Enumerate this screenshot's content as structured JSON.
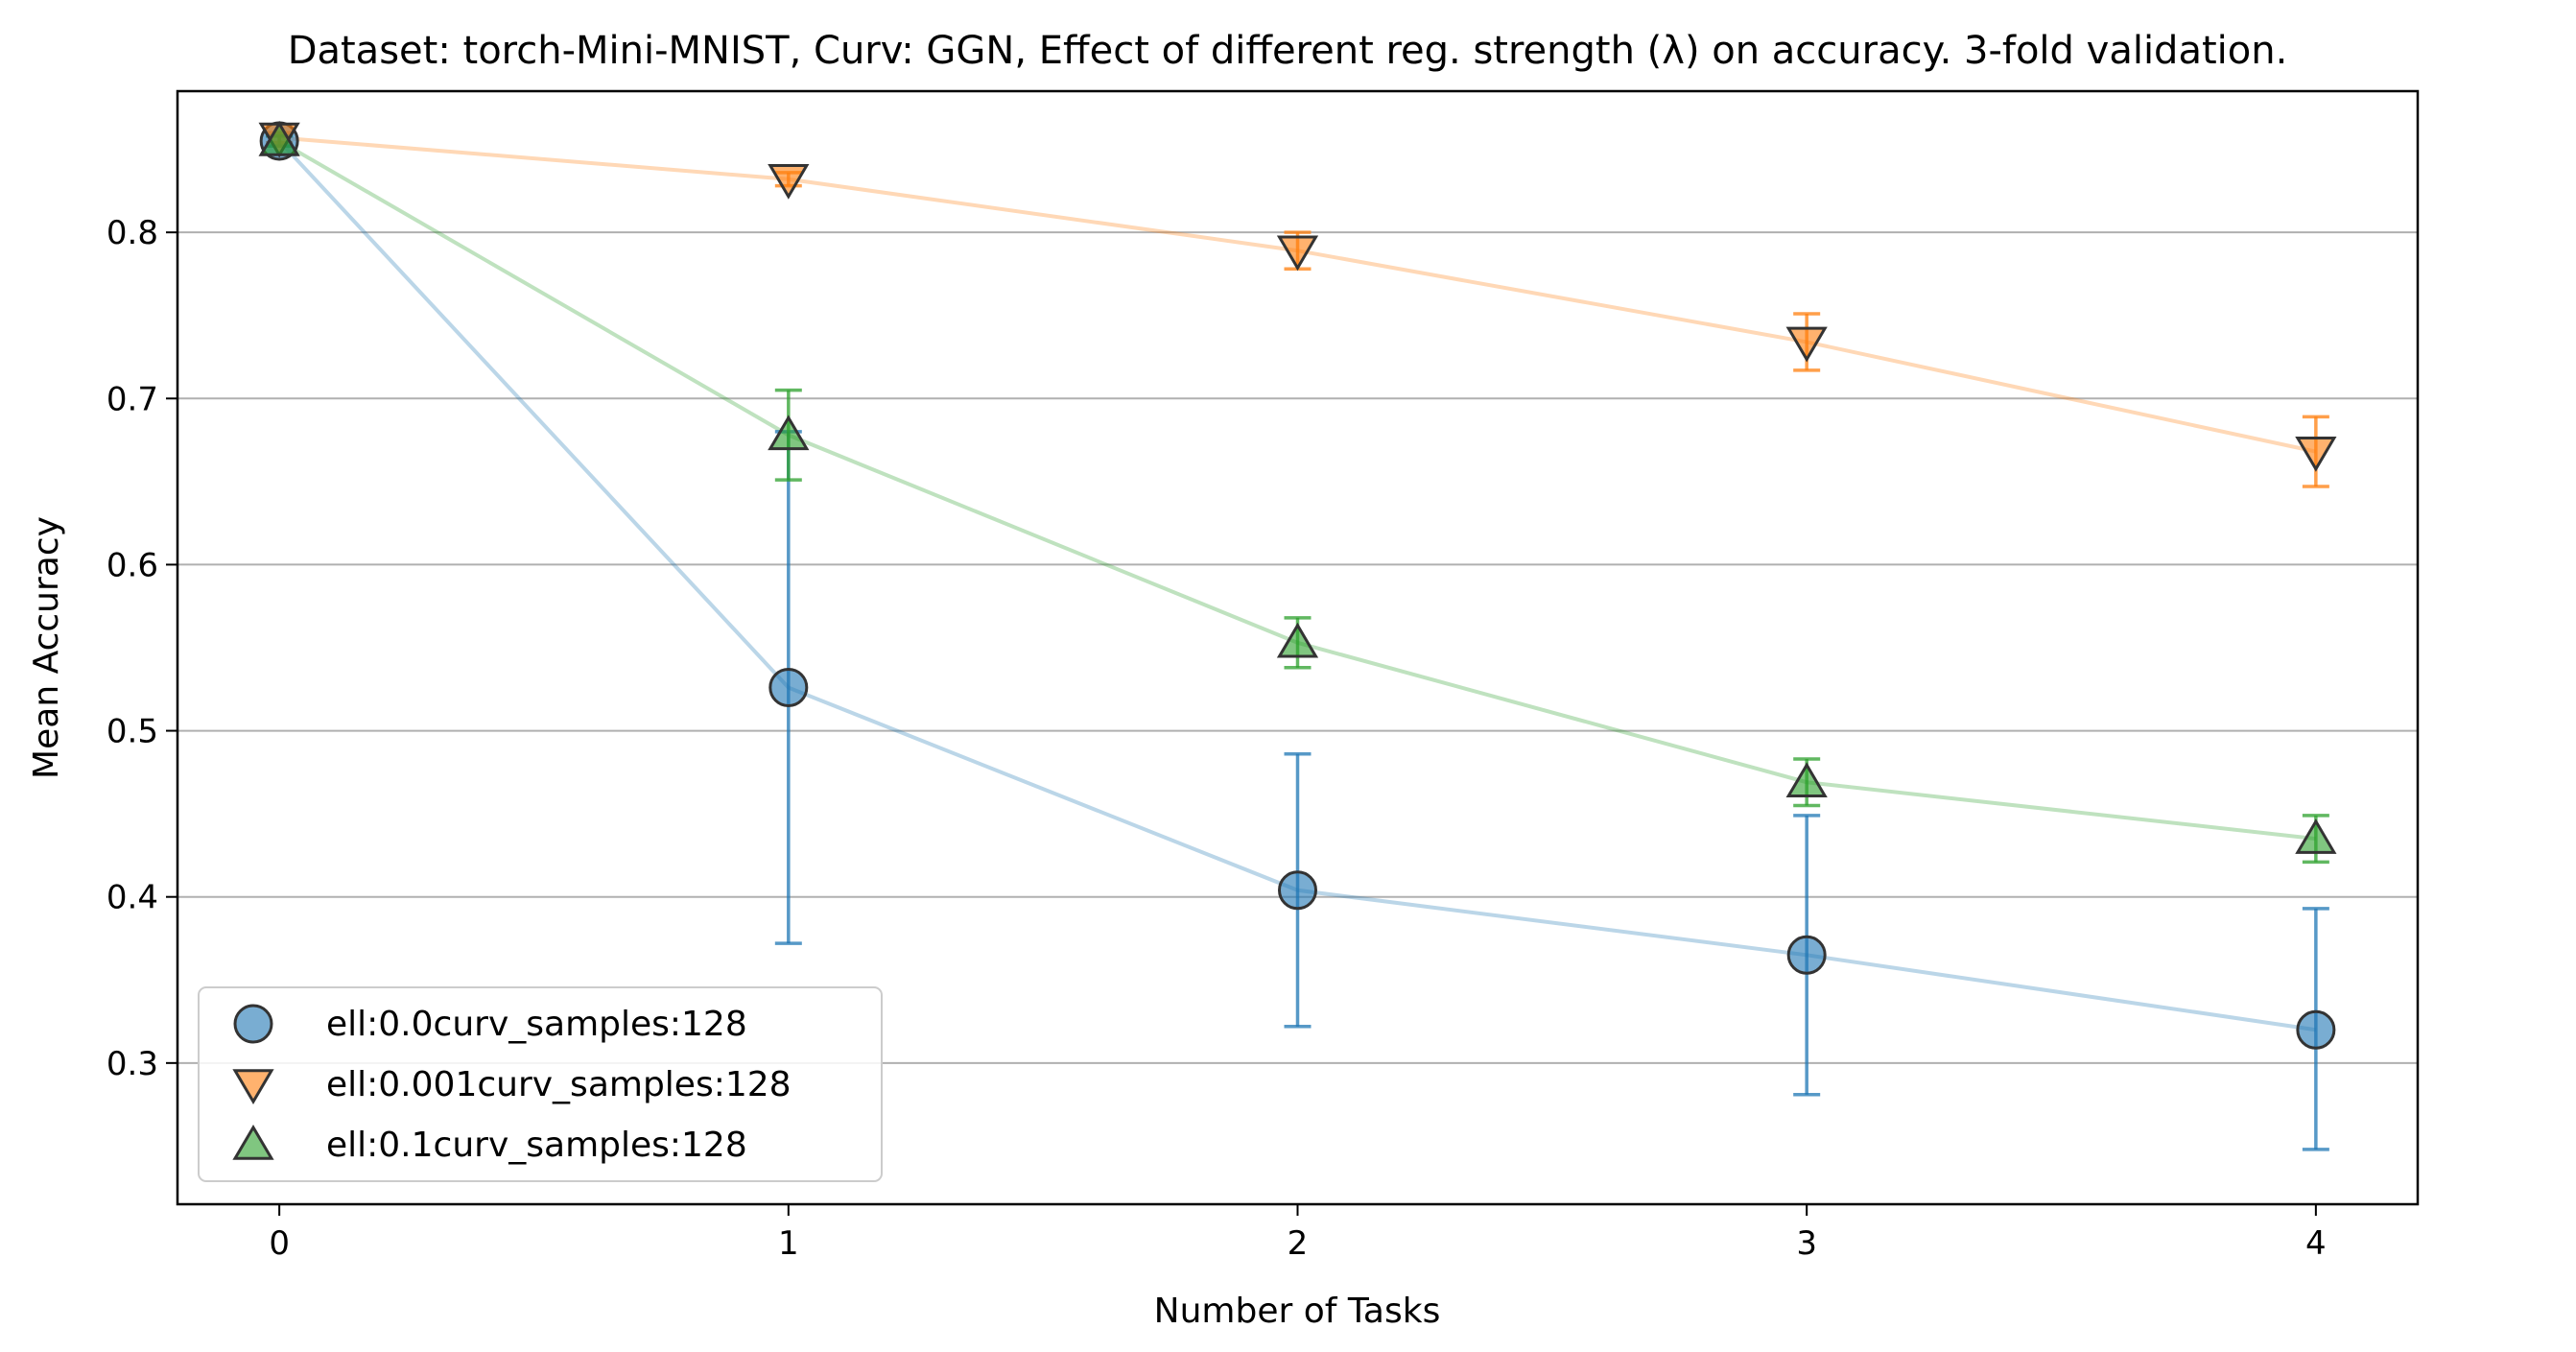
{
  "chart_data": {
    "type": "line",
    "title": "Dataset: torch-Mini-MNIST, Curv: GGN, Effect of different reg. strength (λ) on accuracy. 3-fold validation.",
    "xlabel": "Number of Tasks",
    "ylabel": "Mean Accuracy",
    "x": [
      0,
      1,
      2,
      3,
      4
    ],
    "xlim": [
      -0.2,
      4.2
    ],
    "ylim": [
      0.215,
      0.885
    ],
    "xticks": [
      "0",
      "1",
      "2",
      "3",
      "4"
    ],
    "yticks": [
      {
        "value": 0.3,
        "label": "0.3"
      },
      {
        "value": 0.4,
        "label": "0.4"
      },
      {
        "value": 0.5,
        "label": "0.5"
      },
      {
        "value": 0.6,
        "label": "0.6"
      },
      {
        "value": 0.7,
        "label": "0.7"
      },
      {
        "value": 0.8,
        "label": "0.8"
      }
    ],
    "grid": "horizontal",
    "legend_position": "lower-left",
    "series": [
      {
        "name": "ell:0.0curv_samples:128",
        "marker": "circle",
        "color": "#1f77b4",
        "values": [
          0.855,
          0.526,
          0.404,
          0.365,
          0.32
        ],
        "err_low": [
          0.852,
          0.372,
          0.322,
          0.281,
          0.248
        ],
        "err_high": [
          0.858,
          0.68,
          0.486,
          0.449,
          0.393
        ]
      },
      {
        "name": "ell:0.001curv_samples:128",
        "marker": "triangle-down",
        "color": "#ff7f0e",
        "values": [
          0.857,
          0.832,
          0.789,
          0.734,
          0.668
        ],
        "err_low": [
          0.854,
          0.828,
          0.778,
          0.717,
          0.647
        ],
        "err_high": [
          0.86,
          0.836,
          0.8,
          0.751,
          0.689
        ]
      },
      {
        "name": "ell:0.1curv_samples:128",
        "marker": "triangle-up",
        "color": "#2ca02c",
        "values": [
          0.855,
          0.678,
          0.553,
          0.469,
          0.435
        ],
        "err_low": [
          0.852,
          0.651,
          0.538,
          0.455,
          0.421
        ],
        "err_high": [
          0.858,
          0.705,
          0.568,
          0.483,
          0.449
        ]
      }
    ]
  }
}
